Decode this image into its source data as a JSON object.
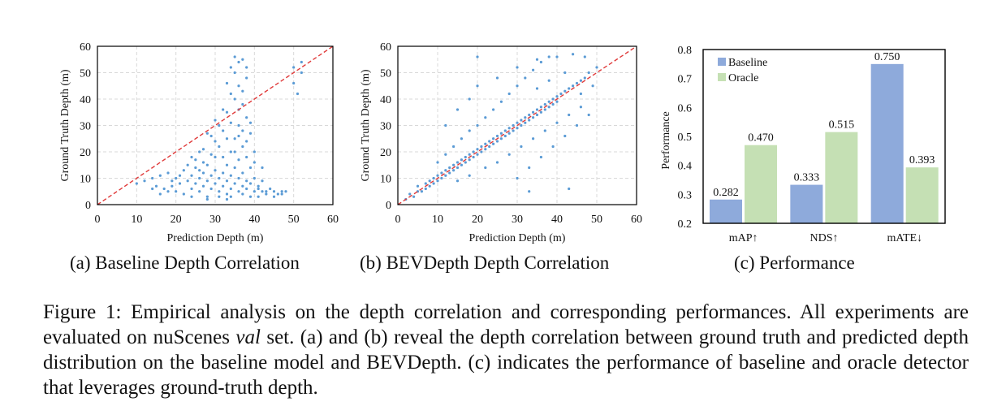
{
  "figure": {
    "subcaptions": {
      "a": "(a)  Baseline Depth Correlation",
      "b": "(b)  BEVDepth Depth Correlation",
      "c": "(c)  Performance"
    },
    "caption": {
      "prefix": "Figure 1: Empirical analysis on the depth correlation and corresponding performances. All experiments are evaluated on nuScenes ",
      "italic": "val",
      "suffix": " set. (a) and (b) reveal the depth correlation between ground truth and predicted depth distribution on the baseline model and BEVDepth. (c) indicates the performance of baseline and oracle detector that leverages ground-truth depth."
    }
  },
  "chart_data": [
    {
      "type": "scatter",
      "id": "baseline",
      "xlabel": "Prediction Depth (m)",
      "ylabel": "Ground Truth Depth (m)",
      "xlim": [
        0,
        60
      ],
      "ylim": [
        0,
        60
      ],
      "xticks": [
        "0",
        "10",
        "20",
        "30",
        "40",
        "50",
        "60"
      ],
      "yticks": [
        "0",
        "10",
        "20",
        "30",
        "40",
        "50",
        "60"
      ],
      "grid": true,
      "reference_line": {
        "x": [
          0,
          60
        ],
        "y": [
          0,
          60
        ],
        "color": "#e03a3a",
        "style": "dashed"
      },
      "point_color": "#5b9bd5",
      "points": [
        [
          10,
          8
        ],
        [
          12,
          9
        ],
        [
          14,
          10
        ],
        [
          15,
          7
        ],
        [
          16,
          11
        ],
        [
          17,
          6
        ],
        [
          18,
          12
        ],
        [
          19,
          9
        ],
        [
          20,
          5
        ],
        [
          20,
          10
        ],
        [
          21,
          8
        ],
        [
          22,
          13
        ],
        [
          22,
          4
        ],
        [
          23,
          9
        ],
        [
          24,
          11
        ],
        [
          24,
          6
        ],
        [
          25,
          14
        ],
        [
          25,
          8
        ],
        [
          26,
          5
        ],
        [
          26,
          10
        ],
        [
          27,
          12
        ],
        [
          27,
          7
        ],
        [
          28,
          9
        ],
        [
          28,
          15
        ],
        [
          28,
          3
        ],
        [
          29,
          11
        ],
        [
          29,
          6
        ],
        [
          30,
          8
        ],
        [
          30,
          13
        ],
        [
          30,
          18
        ],
        [
          31,
          5
        ],
        [
          31,
          10
        ],
        [
          31,
          22
        ],
        [
          32,
          7
        ],
        [
          32,
          12
        ],
        [
          32,
          28
        ],
        [
          33,
          9
        ],
        [
          33,
          15
        ],
        [
          33,
          35
        ],
        [
          33,
          4
        ],
        [
          34,
          6
        ],
        [
          34,
          11
        ],
        [
          34,
          20
        ],
        [
          34,
          42
        ],
        [
          35,
          8
        ],
        [
          35,
          14
        ],
        [
          35,
          25
        ],
        [
          35,
          50
        ],
        [
          35,
          56
        ],
        [
          36,
          5
        ],
        [
          36,
          10
        ],
        [
          36,
          17
        ],
        [
          36,
          30
        ],
        [
          36,
          45
        ],
        [
          37,
          7
        ],
        [
          37,
          12
        ],
        [
          37,
          22
        ],
        [
          37,
          38
        ],
        [
          37,
          55
        ],
        [
          38,
          6
        ],
        [
          38,
          9
        ],
        [
          38,
          18
        ],
        [
          38,
          33
        ],
        [
          38,
          48
        ],
        [
          39,
          8
        ],
        [
          39,
          14
        ],
        [
          39,
          27
        ],
        [
          40,
          5
        ],
        [
          40,
          10
        ],
        [
          40,
          20
        ],
        [
          41,
          7
        ],
        [
          41,
          6
        ],
        [
          42,
          5
        ],
        [
          42,
          9
        ],
        [
          43,
          4
        ],
        [
          44,
          6
        ],
        [
          45,
          5
        ],
        [
          46,
          4
        ],
        [
          47,
          5
        ],
        [
          36,
          54
        ],
        [
          34,
          52
        ],
        [
          33,
          46
        ],
        [
          37,
          43
        ],
        [
          38,
          52
        ],
        [
          35,
          40
        ],
        [
          32,
          36
        ],
        [
          36,
          36
        ],
        [
          30,
          24
        ],
        [
          29,
          19
        ],
        [
          27,
          16
        ],
        [
          26,
          13
        ],
        [
          23,
          15
        ],
        [
          21,
          11
        ],
        [
          19,
          7
        ],
        [
          18,
          5
        ],
        [
          16,
          4
        ],
        [
          14,
          6
        ],
        [
          24,
          3
        ],
        [
          28,
          2
        ],
        [
          31,
          3
        ],
        [
          33,
          2
        ],
        [
          34,
          3
        ],
        [
          37,
          4
        ],
        [
          39,
          3
        ],
        [
          41,
          3
        ],
        [
          43,
          5
        ],
        [
          45,
          3
        ],
        [
          47,
          4
        ],
        [
          48,
          5
        ],
        [
          50,
          46
        ],
        [
          51,
          42
        ],
        [
          52,
          50
        ],
        [
          52,
          54
        ],
        [
          50,
          52
        ],
        [
          30,
          32
        ],
        [
          28,
          27
        ],
        [
          32,
          18
        ],
        [
          29,
          26
        ],
        [
          31,
          30
        ],
        [
          26,
          20
        ],
        [
          25,
          17
        ],
        [
          27,
          21
        ],
        [
          24,
          18
        ],
        [
          33,
          25
        ],
        [
          35,
          20
        ],
        [
          37,
          28
        ],
        [
          38,
          24
        ],
        [
          40,
          16
        ],
        [
          42,
          14
        ],
        [
          34,
          31
        ],
        [
          36,
          26
        ],
        [
          39,
          31
        ]
      ]
    },
    {
      "type": "scatter",
      "id": "bevdepth",
      "xlabel": "Prediction Depth (m)",
      "ylabel": "Ground Truth Depth (m)",
      "xlim": [
        0,
        60
      ],
      "ylim": [
        0,
        60
      ],
      "xticks": [
        "0",
        "10",
        "20",
        "30",
        "40",
        "50",
        "60"
      ],
      "yticks": [
        "0",
        "10",
        "20",
        "30",
        "40",
        "50",
        "60"
      ],
      "grid": true,
      "reference_line": {
        "x": [
          0,
          60
        ],
        "y": [
          0,
          60
        ],
        "color": "#e03a3a",
        "style": "dashed"
      },
      "point_color": "#5b9bd5",
      "points": [
        [
          2,
          2
        ],
        [
          3,
          4
        ],
        [
          4,
          3
        ],
        [
          5,
          5
        ],
        [
          5,
          7
        ],
        [
          6,
          5
        ],
        [
          7,
          8
        ],
        [
          7,
          6
        ],
        [
          8,
          9
        ],
        [
          8,
          7
        ],
        [
          9,
          10
        ],
        [
          9,
          8
        ],
        [
          10,
          11
        ],
        [
          10,
          9
        ],
        [
          11,
          12
        ],
        [
          11,
          10
        ],
        [
          12,
          13
        ],
        [
          12,
          11
        ],
        [
          13,
          14
        ],
        [
          13,
          12
        ],
        [
          14,
          15
        ],
        [
          14,
          13
        ],
        [
          15,
          16
        ],
        [
          15,
          14
        ],
        [
          16,
          17
        ],
        [
          16,
          15
        ],
        [
          17,
          18
        ],
        [
          17,
          16
        ],
        [
          18,
          19
        ],
        [
          18,
          17
        ],
        [
          19,
          20
        ],
        [
          19,
          18
        ],
        [
          20,
          21
        ],
        [
          20,
          19
        ],
        [
          21,
          22
        ],
        [
          21,
          20
        ],
        [
          22,
          23
        ],
        [
          22,
          21
        ],
        [
          23,
          24
        ],
        [
          23,
          22
        ],
        [
          24,
          25
        ],
        [
          24,
          23
        ],
        [
          25,
          26
        ],
        [
          25,
          24
        ],
        [
          26,
          27
        ],
        [
          26,
          25
        ],
        [
          27,
          28
        ],
        [
          27,
          26
        ],
        [
          28,
          29
        ],
        [
          28,
          27
        ],
        [
          29,
          30
        ],
        [
          29,
          28
        ],
        [
          30,
          31
        ],
        [
          30,
          29
        ],
        [
          31,
          32
        ],
        [
          31,
          30
        ],
        [
          32,
          33
        ],
        [
          32,
          31
        ],
        [
          33,
          34
        ],
        [
          33,
          32
        ],
        [
          34,
          35
        ],
        [
          34,
          33
        ],
        [
          35,
          36
        ],
        [
          35,
          34
        ],
        [
          36,
          37
        ],
        [
          36,
          35
        ],
        [
          37,
          38
        ],
        [
          37,
          36
        ],
        [
          38,
          39
        ],
        [
          38,
          37
        ],
        [
          39,
          40
        ],
        [
          39,
          38
        ],
        [
          40,
          41
        ],
        [
          40,
          39
        ],
        [
          41,
          42
        ],
        [
          42,
          43
        ],
        [
          43,
          44
        ],
        [
          44,
          45
        ],
        [
          45,
          46
        ],
        [
          46,
          47
        ],
        [
          47,
          48
        ],
        [
          48,
          50
        ],
        [
          10,
          16
        ],
        [
          12,
          19
        ],
        [
          14,
          22
        ],
        [
          16,
          25
        ],
        [
          18,
          28
        ],
        [
          20,
          30
        ],
        [
          22,
          33
        ],
        [
          24,
          36
        ],
        [
          26,
          39
        ],
        [
          28,
          42
        ],
        [
          30,
          45
        ],
        [
          32,
          48
        ],
        [
          34,
          51
        ],
        [
          36,
          54
        ],
        [
          38,
          56
        ],
        [
          15,
          9
        ],
        [
          18,
          11
        ],
        [
          22,
          14
        ],
        [
          25,
          16
        ],
        [
          28,
          19
        ],
        [
          31,
          22
        ],
        [
          34,
          25
        ],
        [
          37,
          28
        ],
        [
          40,
          31
        ],
        [
          43,
          34
        ],
        [
          46,
          37
        ],
        [
          15,
          36
        ],
        [
          18,
          40
        ],
        [
          20,
          45
        ],
        [
          25,
          48
        ],
        [
          30,
          52
        ],
        [
          35,
          55
        ],
        [
          40,
          56
        ],
        [
          44,
          57
        ],
        [
          47,
          56
        ],
        [
          20,
          56
        ],
        [
          12,
          30
        ],
        [
          30,
          10
        ],
        [
          33,
          14
        ],
        [
          36,
          18
        ],
        [
          39,
          22
        ],
        [
          42,
          26
        ],
        [
          45,
          30
        ],
        [
          48,
          34
        ],
        [
          33,
          5
        ],
        [
          43,
          6
        ],
        [
          50,
          52
        ],
        [
          49,
          45
        ],
        [
          46,
          42
        ],
        [
          42,
          50
        ],
        [
          38,
          47
        ],
        [
          35,
          44
        ]
      ]
    },
    {
      "type": "bar",
      "id": "performance",
      "categories": [
        "mAP↑",
        "NDS↑",
        "mATE↓"
      ],
      "ylabel": "Performance",
      "ylim": [
        0.2,
        0.8
      ],
      "yticks": [
        "0.2",
        "0.3",
        "0.4",
        "0.5",
        "0.6",
        "0.7",
        "0.8"
      ],
      "legend_position": "top-left",
      "series": [
        {
          "name": "Baseline",
          "color": "#8eaadb",
          "values": [
            0.282,
            0.333,
            0.75
          ],
          "labels": [
            "0.282",
            "0.333",
            "0.750"
          ]
        },
        {
          "name": "Oracle",
          "color": "#c5e0b4",
          "values": [
            0.47,
            0.515,
            0.393
          ],
          "labels": [
            "0.470",
            "0.515",
            "0.393"
          ]
        }
      ]
    }
  ]
}
